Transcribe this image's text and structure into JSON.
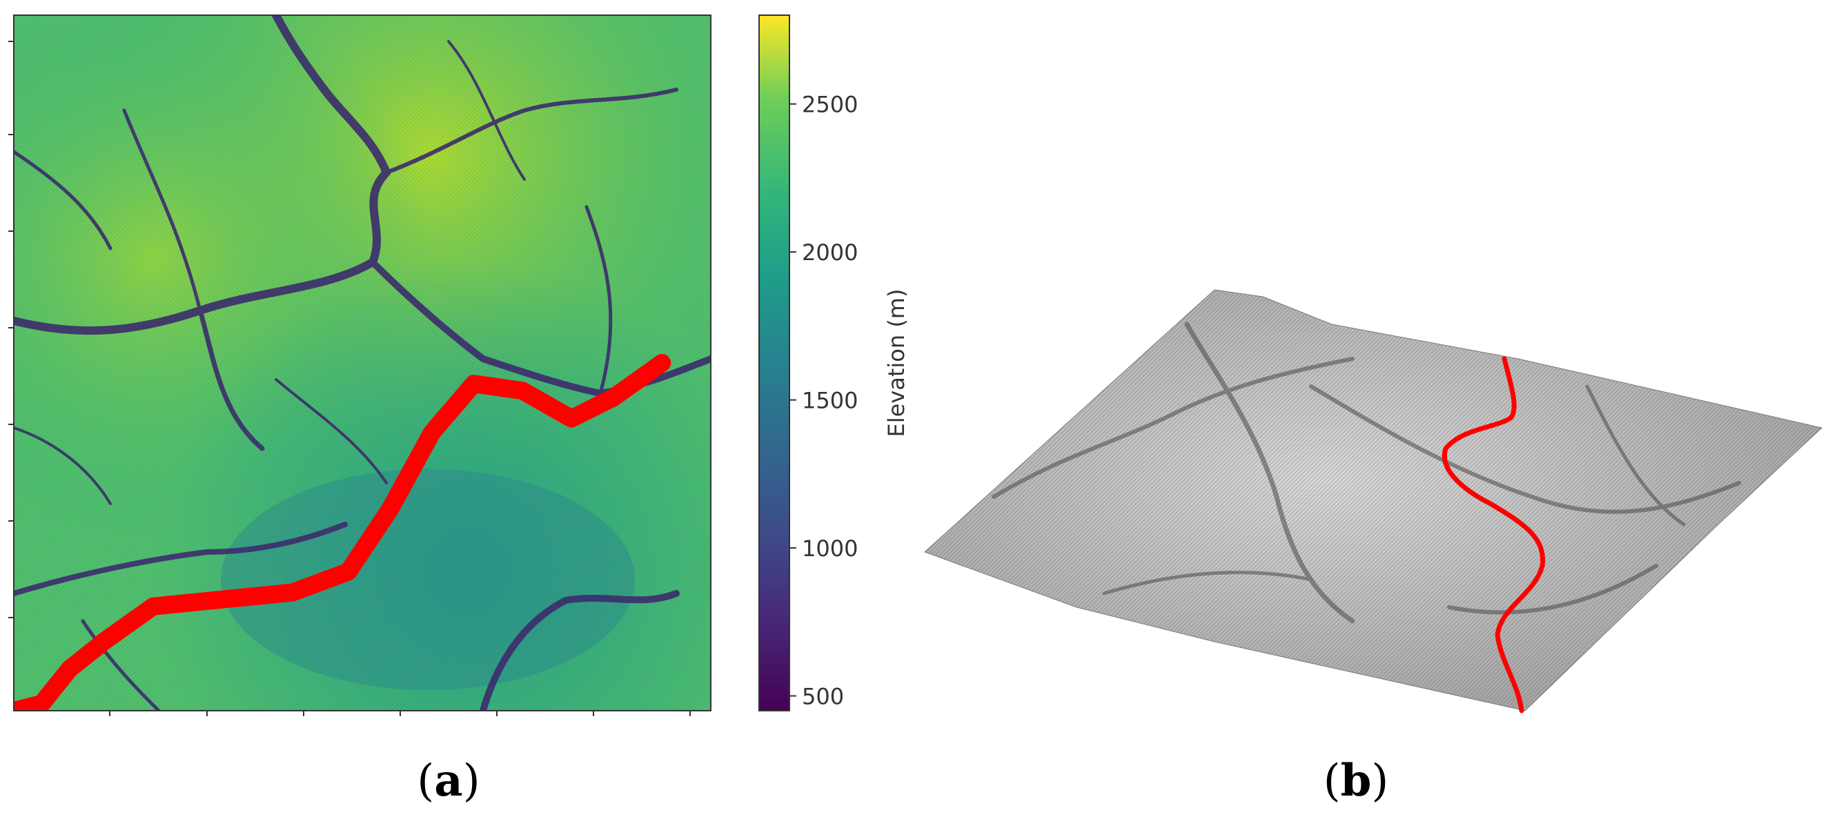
{
  "chart_data": [
    {
      "type": "heatmap",
      "panel_label": "a",
      "colormap": "viridis",
      "colorbar": {
        "label": "Elevation (m)",
        "range": [
          450,
          2800
        ],
        "ticks": [
          500,
          1000,
          1500,
          2000,
          2500
        ]
      },
      "path": {
        "color": "#ff0000",
        "description_points_xy": [
          [
            0.0,
            0.0
          ],
          [
            0.04,
            0.01
          ],
          [
            0.08,
            0.06
          ],
          [
            0.13,
            0.1
          ],
          [
            0.2,
            0.15
          ],
          [
            0.3,
            0.16
          ],
          [
            0.4,
            0.17
          ],
          [
            0.48,
            0.2
          ],
          [
            0.54,
            0.29
          ],
          [
            0.6,
            0.4
          ],
          [
            0.66,
            0.47
          ],
          [
            0.73,
            0.46
          ],
          [
            0.8,
            0.42
          ],
          [
            0.86,
            0.45
          ],
          [
            0.93,
            0.5
          ]
        ]
      }
    },
    {
      "type": "surface",
      "panel_label": "b",
      "colormap": "grayscale",
      "path": {
        "color": "#ff0000"
      }
    }
  ],
  "captions": {
    "a": "a",
    "b": "b"
  },
  "colors": {
    "path": "#ff0000",
    "frame": "#333333"
  }
}
